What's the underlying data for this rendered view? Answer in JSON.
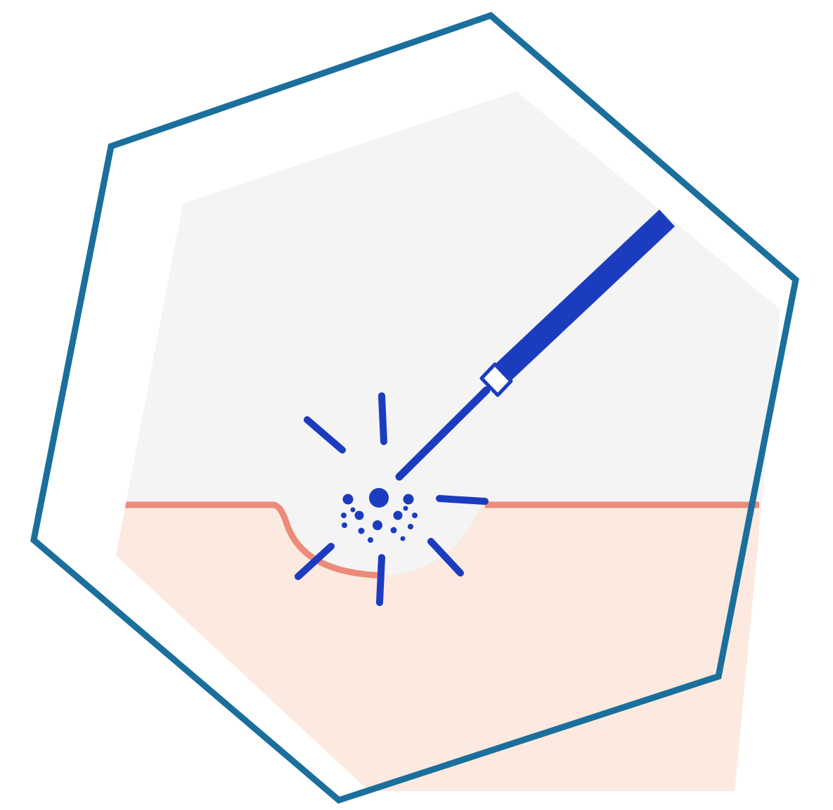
{
  "illustration": {
    "subject": "laser-skin-ablation",
    "icon_name": "laser-treatment-icon",
    "colors": {
      "background": "#ffffff",
      "frame_outline": "#1a6f9c",
      "inner_panel": "#f4f4f4",
      "skin_fill": "#fce9df",
      "skin_line": "#ec8b79",
      "laser_device": "#1c3cc0",
      "laser_tip": "#ffffff"
    }
  }
}
